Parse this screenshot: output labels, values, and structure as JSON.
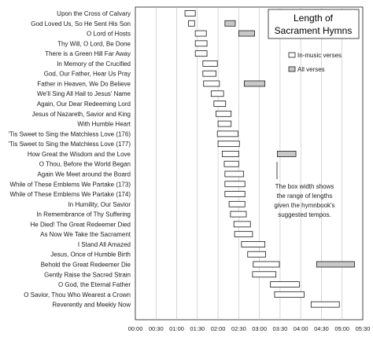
{
  "chart_data": {
    "type": "range-bar",
    "title": "Length of Sacrament Hymns",
    "x_unit": "mm:ss",
    "xlim": [
      0,
      330
    ],
    "x_ticks": [
      "00:00",
      "00:30",
      "01:00",
      "01:30",
      "02:00",
      "02:30",
      "03:00",
      "03:30",
      "04:00",
      "04:30",
      "05:00",
      "05:30"
    ],
    "grid": true,
    "legend": {
      "placement": "top-right",
      "items": [
        "In-music verses",
        "All verses"
      ]
    },
    "annotation": [
      "The box width shows",
      "the range of lengths",
      "given the hymnbook's",
      "suggested tempos."
    ],
    "colors": {
      "in_music": "#ffffff",
      "all_verses": "#c8c8c8",
      "stroke": "#1a1a1a",
      "grid": "#bdbdbd"
    },
    "categories": [
      "Upon the Cross of Calvary",
      "God Loved Us, So He Sent His Son",
      "O Lord of Hosts",
      "Thy Will, O Lord, Be Done",
      "There is a Green Hill Far Away",
      "In Memory of the Crucified",
      "God, Our Father, Hear Us Pray",
      "Father in Heaven, We Do Believe",
      "We'll Sing All Hail to Jesus' Name",
      "Again, Our Dear Redeeming Lord",
      "Jesus of Nazareth, Savior and King",
      "With Humble Heart",
      "'Tis Sweet to Sing the Matchless Love (176)",
      "'Tis Sweet to Sing the Matchless Love (177)",
      "How Great the Wisdom and the Love",
      "O Thou, Before the World Began",
      "Again We Meet around the Board",
      "While of These Emblems We Partake (173)",
      "While of These Emblems We Partake (174)",
      "In Humility, Our Savior",
      "In Remembrance of Thy Suffering",
      "He Died! The Great Redeemer Died",
      "As Now We Take the Sacrament",
      "I Stand All Amazed",
      "Jesus, Once of Humble Birth",
      "Behold the Great Redeemer Die",
      "Gently Raise the Sacred Strain",
      "O God, the Eternal Father",
      "O Savior, Thou Who Wearest a Crown",
      "Reverently and Meekly Now"
    ],
    "series": [
      {
        "name": "In-music verses",
        "ranges": [
          [
            72,
            87
          ],
          [
            77,
            86
          ],
          [
            87,
            103
          ],
          [
            87,
            104
          ],
          [
            87,
            104
          ],
          [
            98,
            119
          ],
          [
            98,
            117
          ],
          [
            99,
            122
          ],
          [
            110,
            128
          ],
          [
            114,
            131
          ],
          [
            117,
            139
          ],
          [
            120,
            139
          ],
          [
            119,
            149
          ],
          [
            120,
            151
          ],
          [
            126,
            150
          ],
          [
            129,
            150
          ],
          [
            130,
            157
          ],
          [
            130,
            159
          ],
          [
            130,
            159
          ],
          [
            136,
            159
          ],
          [
            138,
            161
          ],
          [
            143,
            167
          ],
          [
            144,
            170
          ],
          [
            154,
            188
          ],
          [
            163,
            189
          ],
          [
            171,
            209
          ],
          [
            170,
            204
          ],
          [
            196,
            238
          ],
          [
            202,
            245
          ],
          [
            255,
            296
          ]
        ]
      },
      {
        "name": "All verses",
        "ranges": [
          null,
          [
            130,
            145
          ],
          [
            150,
            173
          ],
          null,
          null,
          null,
          null,
          [
            158,
            188
          ],
          null,
          null,
          null,
          null,
          null,
          null,
          [
            206,
            233
          ],
          null,
          null,
          null,
          null,
          null,
          null,
          null,
          null,
          null,
          null,
          [
            263,
            318
          ],
          null,
          null,
          null,
          null
        ]
      }
    ]
  }
}
